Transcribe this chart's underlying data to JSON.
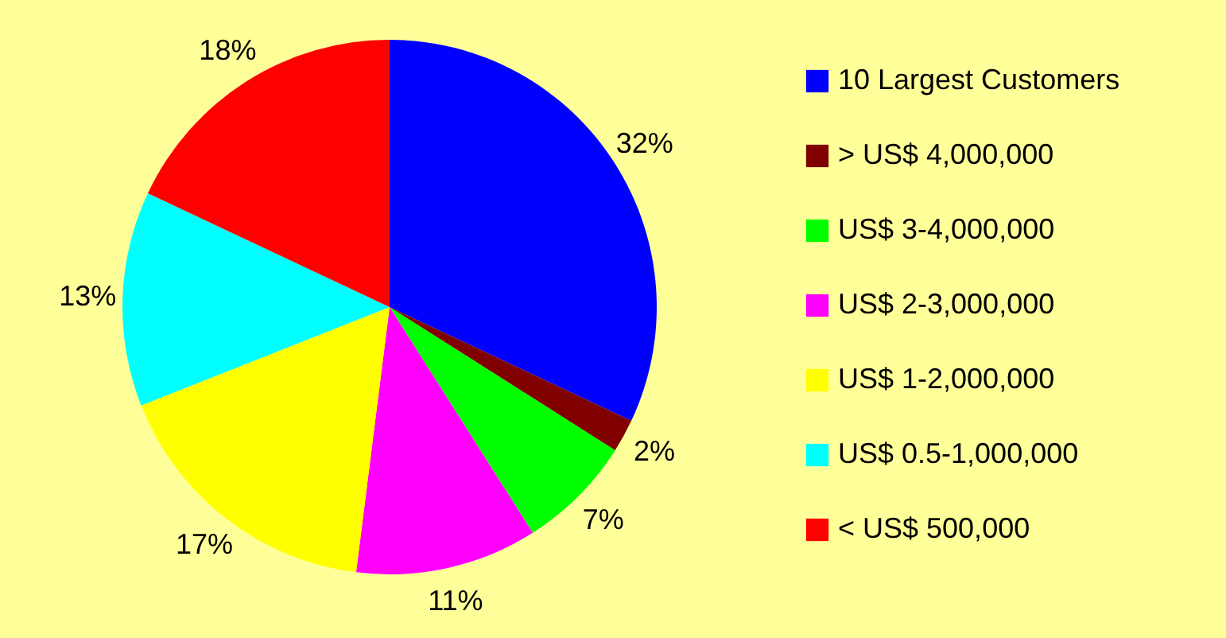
{
  "chart_data": {
    "type": "pie",
    "categories": [
      "10 Largest Customers",
      "> US$ 4,000,000",
      "US$ 3-4,000,000",
      "US$ 2-3,000,000",
      "US$ 1-2,000,000",
      "US$ 0.5-1,000,000",
      "< US$ 500,000"
    ],
    "values": [
      32,
      2,
      7,
      11,
      17,
      13,
      18
    ],
    "value_labels": [
      "32%",
      "2%",
      "7%",
      "11%",
      "17%",
      "13%",
      "18%"
    ],
    "colors": [
      "#0000ff",
      "#800000",
      "#00ff00",
      "#ff00ff",
      "#ffff00",
      "#00ffff",
      "#ff0000"
    ],
    "legend": "right"
  }
}
